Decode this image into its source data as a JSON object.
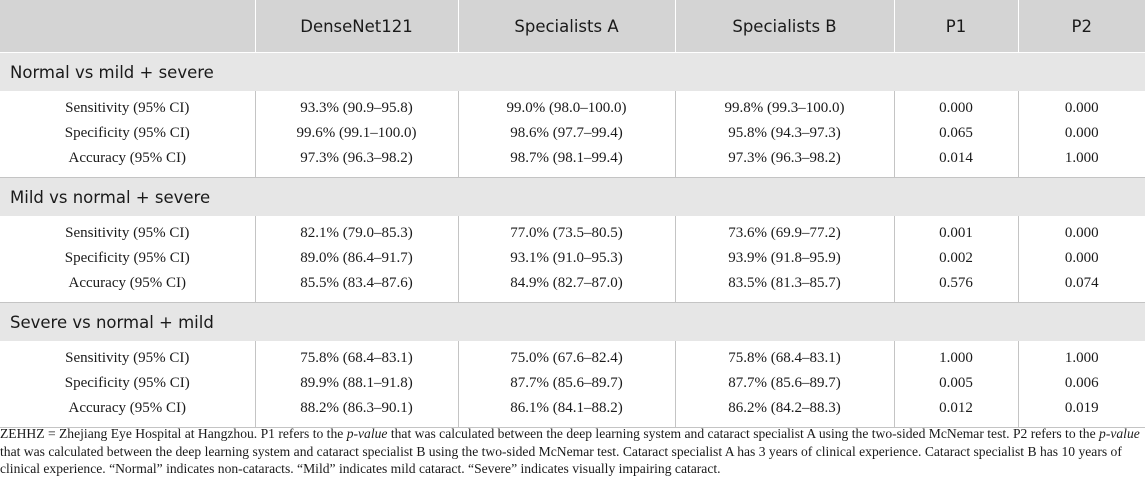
{
  "table": {
    "headers": [
      "",
      "DenseNet121",
      "Specialists A",
      "Specialists B",
      "P1",
      "P2"
    ],
    "sections": [
      {
        "title": "Normal vs mild + severe",
        "rows": [
          [
            "Sensitivity (95% CI)",
            "93.3% (90.9–95.8)",
            "99.0% (98.0–100.0)",
            "99.8% (99.3–100.0)",
            "0.000",
            "0.000"
          ],
          [
            "Specificity (95% CI)",
            "99.6% (99.1–100.0)",
            "98.6% (97.7–99.4)",
            "95.8% (94.3–97.3)",
            "0.065",
            "0.000"
          ],
          [
            "Accuracy (95% CI)",
            "97.3% (96.3–98.2)",
            "98.7% (98.1–99.4)",
            "97.3% (96.3–98.2)",
            "0.014",
            "1.000"
          ]
        ]
      },
      {
        "title": "Mild vs normal + severe",
        "rows": [
          [
            "Sensitivity (95% CI)",
            "82.1% (79.0–85.3)",
            "77.0% (73.5–80.5)",
            "73.6% (69.9–77.2)",
            "0.001",
            "0.000"
          ],
          [
            "Specificity (95% CI)",
            "89.0% (86.4–91.7)",
            "93.1% (91.0–95.3)",
            "93.9% (91.8–95.9)",
            "0.002",
            "0.000"
          ],
          [
            "Accuracy (95% CI)",
            "85.5% (83.4–87.6)",
            "84.9% (82.7–87.0)",
            "83.5% (81.3–85.7)",
            "0.576",
            "0.074"
          ]
        ]
      },
      {
        "title": "Severe vs normal + mild",
        "rows": [
          [
            "Sensitivity (95% CI)",
            "75.8% (68.4–83.1)",
            "75.0% (67.6–82.4)",
            "75.8% (68.4–83.1)",
            "1.000",
            "1.000"
          ],
          [
            "Specificity (95% CI)",
            "89.9% (88.1–91.8)",
            "87.7% (85.6–89.7)",
            "87.7% (85.6–89.7)",
            "0.005",
            "0.006"
          ],
          [
            "Accuracy (95% CI)",
            "88.2% (86.3–90.1)",
            "86.1% (84.1–88.2)",
            "86.2% (84.2–88.3)",
            "0.012",
            "0.019"
          ]
        ]
      }
    ]
  },
  "footnote": {
    "abbrev": "ZEHHZ = Zhejiang Eye Hospital at Hangzhou.",
    "p1_pre": "P1 refers to the",
    "p1_italic": "p-value",
    "p1_post": "that was calculated between the deep learning system and cataract specialist A using the two-sided McNemar test.",
    "p2_pre": "P2 refers to the",
    "p2_italic": "p-value",
    "p2_post": "that was calculated between the deep learning system and cataract specialist B using the two-sided McNemar test.",
    "spec_a": "Cataract specialist A has 3 years of clinical experience.",
    "spec_b": "Cataract specialist B has 10 years of clinical experience.",
    "normal": "“Normal” indicates non-cataracts.",
    "mild": "“Mild” indicates mild cataract.",
    "severe": "“Severe” indicates visually impairing cataract."
  }
}
